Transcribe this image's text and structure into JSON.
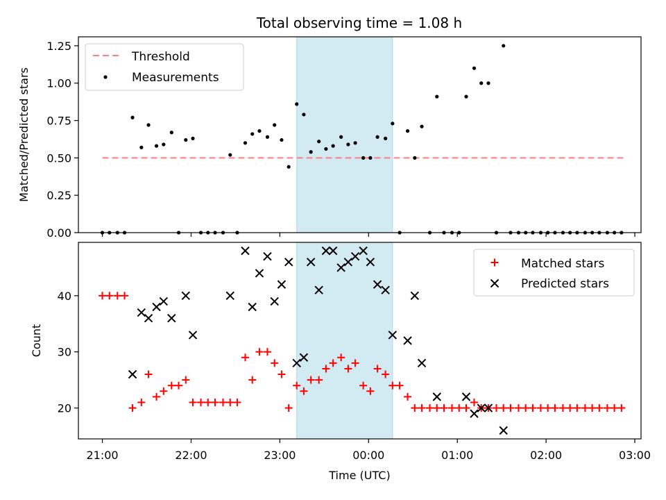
{
  "title": "Total observing time = 1.08 h",
  "chart_data": [
    {
      "type": "scatter",
      "panel": "top",
      "ylabel": "Matched/Predicted stars",
      "xlabel": "",
      "x_unit": "hours since 21:00 UTC",
      "xlim": [
        -0.27,
        6.07
      ],
      "ylim": [
        0,
        1.31
      ],
      "yticks": [
        0.0,
        0.25,
        0.5,
        0.75,
        1.0,
        1.25
      ],
      "ytick_labels": [
        "0.00",
        "0.25",
        "0.50",
        "0.75",
        "1.00",
        "1.25"
      ],
      "shaded_region": {
        "x0": 2.19,
        "x1": 3.27,
        "color": "#add8e6"
      },
      "threshold": {
        "name": "Threshold",
        "y": 0.5,
        "x0": 0.0,
        "x1": 5.87,
        "color": "#ff7f7f"
      },
      "series": [
        {
          "name": "Measurements",
          "color": "#000000",
          "points": [
            [
              0.0,
              0
            ],
            [
              0.08,
              0
            ],
            [
              0.17,
              0
            ],
            [
              0.25,
              0
            ],
            [
              0.34,
              0.77
            ],
            [
              0.44,
              0.57
            ],
            [
              0.52,
              0.72
            ],
            [
              0.61,
              0.58
            ],
            [
              0.69,
              0.59
            ],
            [
              0.78,
              0.67
            ],
            [
              0.86,
              0
            ],
            [
              0.94,
              0.62
            ],
            [
              1.02,
              0.63
            ],
            [
              1.11,
              0
            ],
            [
              1.19,
              0
            ],
            [
              1.27,
              0
            ],
            [
              1.36,
              0
            ],
            [
              1.44,
              0.52
            ],
            [
              1.52,
              0
            ],
            [
              1.61,
              0.6
            ],
            [
              1.69,
              0.66
            ],
            [
              1.77,
              0.68
            ],
            [
              1.86,
              0.64
            ],
            [
              1.94,
              0.72
            ],
            [
              2.02,
              0.62
            ],
            [
              2.1,
              0.44
            ],
            [
              2.19,
              0.86
            ],
            [
              2.27,
              0.79
            ],
            [
              2.35,
              0.54
            ],
            [
              2.44,
              0.61
            ],
            [
              2.52,
              0.56
            ],
            [
              2.6,
              0.58
            ],
            [
              2.69,
              0.64
            ],
            [
              2.77,
              0.59
            ],
            [
              2.85,
              0.6
            ],
            [
              2.94,
              0.5
            ],
            [
              3.02,
              0.5
            ],
            [
              3.1,
              0.64
            ],
            [
              3.19,
              0.63
            ],
            [
              3.27,
              0.73
            ],
            [
              3.35,
              0
            ],
            [
              3.44,
              0.68
            ],
            [
              3.52,
              0.5
            ],
            [
              3.6,
              0.71
            ],
            [
              3.69,
              0
            ],
            [
              3.77,
              0.91
            ],
            [
              3.85,
              0
            ],
            [
              3.94,
              0
            ],
            [
              4.02,
              0
            ],
            [
              4.1,
              0.91
            ],
            [
              4.19,
              1.1
            ],
            [
              4.27,
              1.0
            ],
            [
              4.35,
              1.0
            ],
            [
              4.44,
              0
            ],
            [
              4.52,
              1.25
            ],
            [
              4.6,
              0
            ],
            [
              4.69,
              0
            ],
            [
              4.77,
              0
            ],
            [
              4.85,
              0
            ],
            [
              4.94,
              0
            ],
            [
              5.02,
              0
            ],
            [
              5.1,
              0
            ],
            [
              5.19,
              0
            ],
            [
              5.27,
              0
            ],
            [
              5.35,
              0
            ],
            [
              5.44,
              0
            ],
            [
              5.52,
              0
            ],
            [
              5.6,
              0
            ],
            [
              5.69,
              0
            ],
            [
              5.77,
              0
            ],
            [
              5.85,
              0
            ]
          ]
        }
      ],
      "legend": {
        "position": "upper-left",
        "entries": [
          "Threshold",
          "Measurements"
        ]
      }
    },
    {
      "type": "scatter",
      "panel": "bottom",
      "ylabel": "Count",
      "xlabel": "Time (UTC)",
      "x_unit": "hours since 21:00 UTC",
      "xlim": [
        -0.27,
        6.07
      ],
      "ylim": [
        14.5,
        49.5
      ],
      "yticks": [
        20,
        30,
        40
      ],
      "ytick_labels": [
        "20",
        "30",
        "40"
      ],
      "xticks": [
        0,
        1,
        2,
        3,
        4,
        5,
        6
      ],
      "xtick_labels": [
        "21:00",
        "22:00",
        "23:00",
        "00:00",
        "01:00",
        "02:00",
        "03:00"
      ],
      "shaded_region": {
        "x0": 2.19,
        "x1": 3.27,
        "color": "#add8e6"
      },
      "series": [
        {
          "name": "Matched stars",
          "marker": "plus",
          "color": "#ff0000",
          "points": [
            [
              0.0,
              40
            ],
            [
              0.08,
              40
            ],
            [
              0.17,
              40
            ],
            [
              0.25,
              40
            ],
            [
              0.34,
              20
            ],
            [
              0.44,
              21
            ],
            [
              0.52,
              26
            ],
            [
              0.61,
              22
            ],
            [
              0.69,
              23
            ],
            [
              0.78,
              24
            ],
            [
              0.86,
              24
            ],
            [
              0.94,
              25
            ],
            [
              1.02,
              21
            ],
            [
              1.11,
              21
            ],
            [
              1.19,
              21
            ],
            [
              1.27,
              21
            ],
            [
              1.36,
              21
            ],
            [
              1.44,
              21
            ],
            [
              1.52,
              21
            ],
            [
              1.61,
              29
            ],
            [
              1.69,
              25
            ],
            [
              1.77,
              30
            ],
            [
              1.86,
              30
            ],
            [
              1.94,
              28
            ],
            [
              2.02,
              26
            ],
            [
              2.1,
              20
            ],
            [
              2.19,
              24
            ],
            [
              2.27,
              23
            ],
            [
              2.35,
              25
            ],
            [
              2.44,
              25
            ],
            [
              2.52,
              27
            ],
            [
              2.6,
              28
            ],
            [
              2.69,
              29
            ],
            [
              2.77,
              27
            ],
            [
              2.85,
              28
            ],
            [
              2.94,
              24
            ],
            [
              3.02,
              23
            ],
            [
              3.1,
              27
            ],
            [
              3.19,
              26
            ],
            [
              3.27,
              24
            ],
            [
              3.35,
              24
            ],
            [
              3.44,
              22
            ],
            [
              3.52,
              20
            ],
            [
              3.6,
              20
            ],
            [
              3.69,
              20
            ],
            [
              3.77,
              20
            ],
            [
              3.85,
              20
            ],
            [
              3.94,
              20
            ],
            [
              4.02,
              20
            ],
            [
              4.1,
              20
            ],
            [
              4.19,
              21
            ],
            [
              4.27,
              20
            ],
            [
              4.35,
              20
            ],
            [
              4.44,
              20
            ],
            [
              4.52,
              20
            ],
            [
              4.6,
              20
            ],
            [
              4.69,
              20
            ],
            [
              4.77,
              20
            ],
            [
              4.85,
              20
            ],
            [
              4.94,
              20
            ],
            [
              5.02,
              20
            ],
            [
              5.1,
              20
            ],
            [
              5.19,
              20
            ],
            [
              5.27,
              20
            ],
            [
              5.35,
              20
            ],
            [
              5.44,
              20
            ],
            [
              5.52,
              20
            ],
            [
              5.6,
              20
            ],
            [
              5.69,
              20
            ],
            [
              5.77,
              20
            ],
            [
              5.85,
              20
            ]
          ]
        },
        {
          "name": "Predicted stars",
          "marker": "x",
          "color": "#000000",
          "points": [
            [
              0.34,
              26
            ],
            [
              0.44,
              37
            ],
            [
              0.52,
              36
            ],
            [
              0.61,
              38
            ],
            [
              0.69,
              39
            ],
            [
              0.78,
              36
            ],
            [
              0.94,
              40
            ],
            [
              1.02,
              33
            ],
            [
              1.44,
              40
            ],
            [
              1.61,
              48
            ],
            [
              1.69,
              38
            ],
            [
              1.77,
              44
            ],
            [
              1.86,
              47
            ],
            [
              1.94,
              39
            ],
            [
              2.02,
              42
            ],
            [
              2.1,
              46
            ],
            [
              2.19,
              28
            ],
            [
              2.27,
              29
            ],
            [
              2.35,
              46
            ],
            [
              2.44,
              41
            ],
            [
              2.52,
              48
            ],
            [
              2.6,
              48
            ],
            [
              2.69,
              45
            ],
            [
              2.77,
              46
            ],
            [
              2.85,
              47
            ],
            [
              2.94,
              48
            ],
            [
              3.02,
              46
            ],
            [
              3.1,
              42
            ],
            [
              3.19,
              41
            ],
            [
              3.27,
              33
            ],
            [
              3.44,
              32
            ],
            [
              3.52,
              40
            ],
            [
              3.6,
              28
            ],
            [
              3.77,
              22
            ],
            [
              4.1,
              22
            ],
            [
              4.19,
              19
            ],
            [
              4.27,
              20
            ],
            [
              4.35,
              20
            ],
            [
              4.52,
              16
            ]
          ]
        }
      ],
      "legend": {
        "position": "upper-right",
        "entries": [
          "Matched stars",
          "Predicted stars"
        ]
      }
    }
  ]
}
